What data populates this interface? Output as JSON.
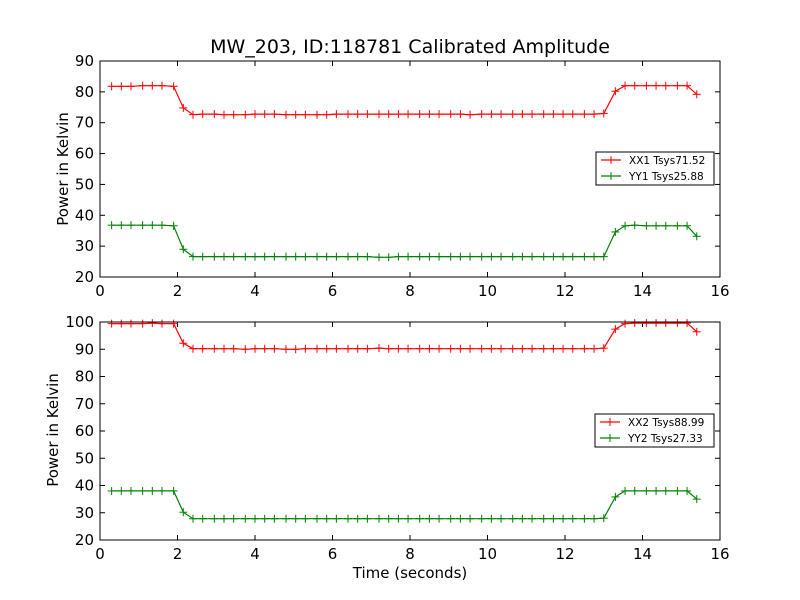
{
  "chart_data": [
    {
      "type": "line",
      "title": "MW_203, ID:118781 Calibrated Amplitude",
      "xlabel": "",
      "ylabel": "Power in Kelvin",
      "xlim": [
        0,
        16
      ],
      "ylim": [
        20,
        90
      ],
      "xticks": [
        0,
        2,
        4,
        6,
        8,
        10,
        12,
        14,
        16
      ],
      "yticks": [
        20,
        30,
        40,
        50,
        60,
        70,
        80,
        90
      ],
      "grid": false,
      "legend_position": "center-right",
      "x": [
        0.3,
        0.55,
        0.8,
        1.1,
        1.35,
        1.6,
        1.9,
        2.15,
        2.4,
        2.65,
        2.95,
        3.2,
        3.45,
        3.75,
        4.0,
        4.25,
        4.5,
        4.8,
        5.05,
        5.3,
        5.6,
        5.85,
        6.1,
        6.4,
        6.65,
        6.9,
        7.2,
        7.45,
        7.7,
        7.95,
        8.25,
        8.5,
        8.75,
        9.05,
        9.3,
        9.55,
        9.85,
        10.1,
        10.35,
        10.65,
        10.9,
        11.15,
        11.45,
        11.7,
        11.95,
        12.2,
        12.5,
        12.75,
        13.0,
        13.3,
        13.55,
        13.8,
        14.1,
        14.35,
        14.6,
        14.9,
        15.15,
        15.4
      ],
      "series": [
        {
          "name": "XX1 Tsys71.52",
          "color": "#ff0000",
          "values": [
            81.8,
            81.8,
            81.8,
            82.0,
            82.0,
            82.0,
            81.8,
            74.8,
            72.6,
            72.8,
            72.8,
            72.6,
            72.6,
            72.6,
            72.8,
            72.8,
            72.8,
            72.6,
            72.6,
            72.6,
            72.6,
            72.6,
            72.8,
            72.8,
            72.8,
            72.8,
            72.8,
            72.8,
            72.8,
            72.8,
            72.8,
            72.8,
            72.8,
            72.8,
            72.8,
            72.6,
            72.8,
            72.8,
            72.8,
            72.8,
            72.8,
            72.8,
            72.8,
            72.8,
            72.8,
            72.8,
            72.8,
            72.8,
            73.0,
            80.2,
            82.0,
            82.0,
            82.0,
            82.0,
            82.0,
            82.0,
            82.0,
            79.2
          ]
        },
        {
          "name": "YY1 Tsys25.88",
          "color": "#008000",
          "values": [
            36.8,
            36.8,
            36.8,
            36.8,
            36.8,
            36.8,
            36.6,
            29.0,
            26.6,
            26.6,
            26.6,
            26.6,
            26.6,
            26.6,
            26.6,
            26.6,
            26.6,
            26.6,
            26.6,
            26.6,
            26.6,
            26.6,
            26.6,
            26.6,
            26.6,
            26.6,
            26.4,
            26.4,
            26.6,
            26.6,
            26.6,
            26.6,
            26.6,
            26.6,
            26.6,
            26.6,
            26.6,
            26.6,
            26.6,
            26.6,
            26.6,
            26.6,
            26.6,
            26.6,
            26.6,
            26.6,
            26.6,
            26.6,
            26.6,
            34.6,
            36.6,
            36.8,
            36.6,
            36.6,
            36.6,
            36.6,
            36.6,
            33.2
          ]
        }
      ]
    },
    {
      "type": "line",
      "title": "",
      "xlabel": "Time (seconds)",
      "ylabel": "Power in Kelvin",
      "xlim": [
        0,
        16
      ],
      "ylim": [
        20,
        100
      ],
      "xticks": [
        0,
        2,
        4,
        6,
        8,
        10,
        12,
        14,
        16
      ],
      "yticks": [
        20,
        30,
        40,
        50,
        60,
        70,
        80,
        90,
        100
      ],
      "grid": false,
      "legend_position": "center-right",
      "x": [
        0.3,
        0.55,
        0.8,
        1.1,
        1.35,
        1.6,
        1.9,
        2.15,
        2.4,
        2.65,
        2.95,
        3.2,
        3.45,
        3.75,
        4.0,
        4.25,
        4.5,
        4.8,
        5.05,
        5.3,
        5.6,
        5.85,
        6.1,
        6.4,
        6.65,
        6.9,
        7.2,
        7.45,
        7.7,
        7.95,
        8.25,
        8.5,
        8.75,
        9.05,
        9.3,
        9.55,
        9.85,
        10.1,
        10.35,
        10.65,
        10.9,
        11.15,
        11.45,
        11.7,
        11.95,
        12.2,
        12.5,
        12.75,
        13.0,
        13.3,
        13.55,
        13.8,
        14.1,
        14.35,
        14.6,
        14.9,
        15.15,
        15.4
      ],
      "series": [
        {
          "name": "XX2 Tsys88.99",
          "color": "#ff0000",
          "values": [
            99.4,
            99.4,
            99.4,
            99.4,
            99.6,
            99.4,
            99.4,
            92.2,
            90.2,
            90.2,
            90.2,
            90.2,
            90.2,
            90.0,
            90.2,
            90.2,
            90.2,
            90.0,
            90.0,
            90.2,
            90.2,
            90.2,
            90.2,
            90.2,
            90.2,
            90.2,
            90.4,
            90.2,
            90.2,
            90.2,
            90.2,
            90.2,
            90.2,
            90.2,
            90.2,
            90.2,
            90.2,
            90.2,
            90.2,
            90.2,
            90.2,
            90.2,
            90.2,
            90.2,
            90.2,
            90.2,
            90.2,
            90.2,
            90.4,
            97.4,
            99.4,
            99.6,
            99.6,
            99.6,
            99.6,
            99.6,
            99.6,
            96.4
          ]
        },
        {
          "name": "YY2 Tsys27.33",
          "color": "#008000",
          "values": [
            38.0,
            38.0,
            38.0,
            38.0,
            38.0,
            38.0,
            38.0,
            30.2,
            27.8,
            27.8,
            27.8,
            27.8,
            27.8,
            27.8,
            27.8,
            27.8,
            27.8,
            27.8,
            27.8,
            27.8,
            27.8,
            27.8,
            27.8,
            27.8,
            27.8,
            27.8,
            27.8,
            27.8,
            27.8,
            27.8,
            27.8,
            27.8,
            27.8,
            27.8,
            27.8,
            27.8,
            27.8,
            27.8,
            27.8,
            27.8,
            27.8,
            27.8,
            27.8,
            27.8,
            27.8,
            27.8,
            27.8,
            27.8,
            28.0,
            35.8,
            38.0,
            38.0,
            38.0,
            38.0,
            38.0,
            38.0,
            38.0,
            35.0
          ]
        }
      ]
    }
  ]
}
